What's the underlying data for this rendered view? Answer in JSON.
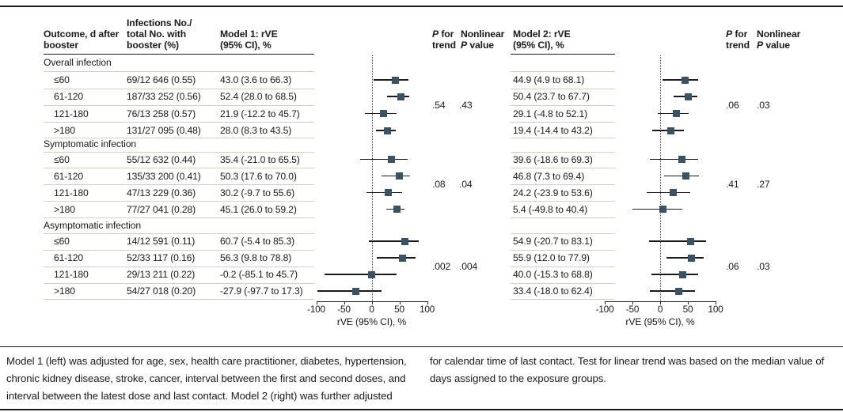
{
  "headers": {
    "outcome": [
      "Outcome, d after",
      "booster"
    ],
    "infections": [
      "Infections No./",
      "total No. with",
      "booster (%)"
    ],
    "model1": [
      "Model 1: rVE",
      "(95% CI), %"
    ],
    "p_trend": [
      "P for",
      "trend"
    ],
    "nonlinear": [
      "Nonlinear",
      "P value"
    ],
    "model2": [
      "Model 2: rVE",
      "(95% CI), %"
    ]
  },
  "chart_data": {
    "type": "scatter",
    "variant": "forest-plot",
    "xlabel": "rVE (95% CI), %",
    "xlim": [
      -100,
      100
    ],
    "x_ticks": [
      -100,
      -50,
      0,
      50,
      100
    ],
    "reference_line": 0,
    "grid": false,
    "marker_color": "#3a5363",
    "groups": [
      {
        "label": "Overall infection",
        "model1": {
          "p_trend": ".54",
          "p_nonlinear": ".43"
        },
        "model2": {
          "p_trend": ".06",
          "p_nonlinear": ".03"
        },
        "rows": [
          {
            "outcome": "≤60",
            "infections": "69/12 646 (0.55)",
            "model1": {
              "text": "43.0 (3.6 to 66.3)",
              "est": 43.0,
              "lo": 3.6,
              "hi": 66.3
            },
            "model2": {
              "text": "44.9 (4.9 to 68.1)",
              "est": 44.9,
              "lo": 4.9,
              "hi": 68.1
            }
          },
          {
            "outcome": "61-120",
            "infections": "187/33 252 (0.56)",
            "model1": {
              "text": "52.4 (28.0 to 68.5)",
              "est": 52.4,
              "lo": 28.0,
              "hi": 68.5
            },
            "model2": {
              "text": "50.4 (23.7 to 67.7)",
              "est": 50.4,
              "lo": 23.7,
              "hi": 67.7
            }
          },
          {
            "outcome": "121-180",
            "infections": "76/13 258 (0.57)",
            "model1": {
              "text": "21.9 (-12.2 to 45.7)",
              "est": 21.9,
              "lo": -12.2,
              "hi": 45.7
            },
            "model2": {
              "text": "29.1 (-4.8 to 52.1)",
              "est": 29.1,
              "lo": -4.8,
              "hi": 52.1
            }
          },
          {
            "outcome": ">180",
            "infections": "131/27 095 (0.48)",
            "model1": {
              "text": "28.0 (8.3 to 43.5)",
              "est": 28.0,
              "lo": 8.3,
              "hi": 43.5
            },
            "model2": {
              "text": "19.4 (-14.4 to 43.2)",
              "est": 19.4,
              "lo": -14.4,
              "hi": 43.2
            }
          }
        ]
      },
      {
        "label": "Symptomatic infection",
        "model1": {
          "p_trend": ".08",
          "p_nonlinear": ".04"
        },
        "model2": {
          "p_trend": ".41",
          "p_nonlinear": ".27"
        },
        "rows": [
          {
            "outcome": "≤60",
            "infections": "55/12 632 (0.44)",
            "model1": {
              "text": "35.4 (-21.0 to 65.5)",
              "est": 35.4,
              "lo": -21.0,
              "hi": 65.5
            },
            "model2": {
              "text": "39.6 (-18.6 to 69.3)",
              "est": 39.6,
              "lo": -18.6,
              "hi": 69.3
            }
          },
          {
            "outcome": "61-120",
            "infections": "135/33 200 (0.41)",
            "model1": {
              "text": "50.3 (17.6 to 70.0)",
              "est": 50.3,
              "lo": 17.6,
              "hi": 70.0
            },
            "model2": {
              "text": "46.8 (7.3 to 69.4)",
              "est": 46.8,
              "lo": 7.3,
              "hi": 69.4
            }
          },
          {
            "outcome": "121-180",
            "infections": "47/13 229 (0.36)",
            "model1": {
              "text": "30.2 (-9.7 to 55.6)",
              "est": 30.2,
              "lo": -9.7,
              "hi": 55.6
            },
            "model2": {
              "text": "24.2 (-23.9 to 53.6)",
              "est": 24.2,
              "lo": -23.9,
              "hi": 53.6
            }
          },
          {
            "outcome": ">180",
            "infections": "77/27 041 (0.28)",
            "model1": {
              "text": "45.1 (26.0 to 59.2)",
              "est": 45.1,
              "lo": 26.0,
              "hi": 59.2
            },
            "model2": {
              "text": "5.4 (-49.8 to 40.4)",
              "est": 5.4,
              "lo": -49.8,
              "hi": 40.4
            }
          }
        ]
      },
      {
        "label": "Asymptomatic infection",
        "model1": {
          "p_trend": ".002",
          "p_nonlinear": ".004"
        },
        "model2": {
          "p_trend": ".06",
          "p_nonlinear": ".03"
        },
        "rows": [
          {
            "outcome": "≤60",
            "infections": "14/12 591 (0.11)",
            "model1": {
              "text": "60.7 (-5.4 to 85.3)",
              "est": 60.7,
              "lo": -5.4,
              "hi": 85.3
            },
            "model2": {
              "text": "54.9 (-20.7 to 83.1)",
              "est": 54.9,
              "lo": -20.7,
              "hi": 83.1
            }
          },
          {
            "outcome": "61-120",
            "infections": "52/33 117 (0.16)",
            "model1": {
              "text": "56.3 (9.8 to 78.8)",
              "est": 56.3,
              "lo": 9.8,
              "hi": 78.8
            },
            "model2": {
              "text": "55.9 (12.0 to 77.9)",
              "est": 55.9,
              "lo": 12.0,
              "hi": 77.9
            }
          },
          {
            "outcome": "121-180",
            "infections": "29/13 211 (0.22)",
            "model1": {
              "text": "-0.2 (-85.1 to 45.7)",
              "est": -0.2,
              "lo": -85.1,
              "hi": 45.7
            },
            "model2": {
              "text": "40.0 (-15.3 to 68.8)",
              "est": 40.0,
              "lo": -15.3,
              "hi": 68.8
            }
          },
          {
            "outcome": ">180",
            "infections": "54/27 018 (0.20)",
            "model1": {
              "text": "-27.9 (-97.7 to 17.3)",
              "est": -27.9,
              "lo": -97.7,
              "hi": 17.3
            },
            "model2": {
              "text": "33.4 (-18.0 to 62.4)",
              "est": 33.4,
              "lo": -18.0,
              "hi": 62.4
            }
          }
        ]
      }
    ]
  },
  "footnotes": {
    "left": "Model 1 (left) was adjusted for age, sex, health care practitioner, diabetes, hypertension, chronic kidney disease, stroke, cancer, interval between the first and second doses, and interval between the latest dose and last contact. Model 2 (right) was further adjusted",
    "right": "for calendar time of last contact. Test for linear trend was based on the median value of days assigned to the exposure groups."
  }
}
